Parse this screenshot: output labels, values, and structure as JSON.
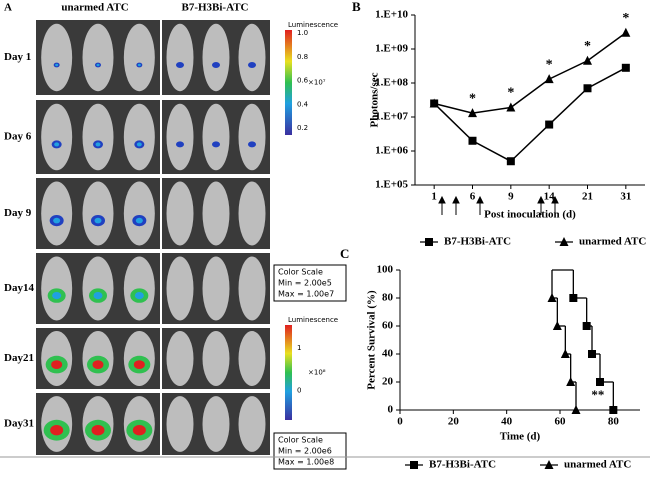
{
  "panel_a": {
    "label": "A",
    "columns": [
      "unarmed ATC",
      "B7-H3Bi-ATC"
    ],
    "rows": [
      "Day 1",
      "Day 6",
      "Day 9",
      "Day14",
      "Day21",
      "Day31"
    ],
    "colorbars": [
      {
        "title": "Luminescence",
        "ticks": [
          "1.0",
          "0.8",
          "0.6",
          "0.4",
          "0.2"
        ],
        "unit": "×10⁷",
        "scale_title": "Color Scale",
        "min": "Min = 2.00e5",
        "max": "Max = 1.00e7"
      },
      {
        "title": "Luminescence",
        "ticks": [
          "1",
          "0"
        ],
        "unit": "×10⁸",
        "scale_title": "Color Scale",
        "min": "Min = 2.00e6",
        "max": "Max = 1.00e8"
      }
    ]
  },
  "chart_data": [
    {
      "label": "B",
      "type": "line",
      "categories": [
        "1",
        "6",
        "9",
        "14",
        "21",
        "31"
      ],
      "series": [
        {
          "name": "B7-H3Bi-ATC",
          "color": "#000000",
          "marker": "square",
          "values": [
            25000000,
            2000000,
            500000,
            6000000,
            70000000,
            280000000
          ]
        },
        {
          "name": "unarmed ATC",
          "color": "#000000",
          "marker": "triangle",
          "values": [
            25000000,
            13000000,
            19000000,
            130000000,
            450000000,
            3000000000
          ]
        }
      ],
      "significance": [
        null,
        "*",
        "*",
        "*",
        "*",
        "*"
      ],
      "log_scale": true,
      "ylim": [
        100000,
        10000000000
      ],
      "yticks": [
        {
          "value": 100000,
          "label": "1.E+05"
        },
        {
          "value": 1000000,
          "label": "1.E+06"
        },
        {
          "value": 10000000,
          "label": "1.E+07"
        },
        {
          "value": 100000000,
          "label": "1.E+08"
        },
        {
          "value": 1000000000,
          "label": "1.E+09"
        },
        {
          "value": 10000000000,
          "label": "1.E+10"
        }
      ],
      "ylabel": "Photons/sec",
      "xlabel": "Post inoculation (d)"
    },
    {
      "label": "C",
      "type": "step",
      "series": [
        {
          "name": "B7-H3Bi-ATC",
          "color": "#000000",
          "marker": "square",
          "x": [
            57,
            65,
            70,
            72,
            75,
            80
          ],
          "values": [
            100,
            80,
            60,
            40,
            20,
            0
          ]
        },
        {
          "name": "unarmed ATC",
          "color": "#000000",
          "marker": "triangle",
          "x": [
            57,
            57,
            59,
            62,
            64,
            66
          ],
          "values": [
            100,
            80,
            60,
            40,
            20,
            0
          ]
        }
      ],
      "annotation": "**",
      "xlim": [
        0,
        90
      ],
      "xticks": [
        0,
        20,
        40,
        60,
        80
      ],
      "ylim": [
        0,
        100
      ],
      "yticks": [
        0,
        20,
        40,
        60,
        80,
        100
      ],
      "ylabel": "Percent Survival (%)",
      "xlabel": "Time (d)"
    }
  ]
}
